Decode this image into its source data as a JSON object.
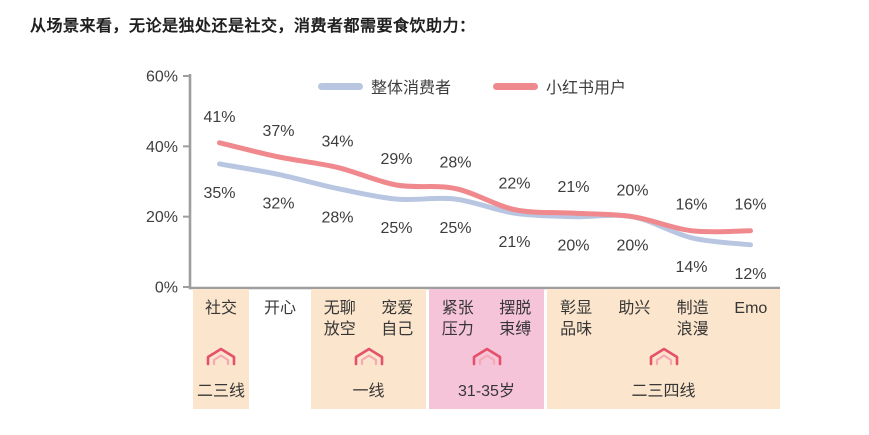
{
  "title": "从场景来看，无论是独处还是社交，消费者都需要食饮助力：",
  "legend": [
    {
      "label": "整体消费者",
      "color": "#b9c6e2"
    },
    {
      "label": "小红书用户",
      "color": "#f0898d"
    }
  ],
  "chart_data": {
    "type": "line",
    "title": "",
    "xlabel": "",
    "ylabel": "",
    "categories": [
      "社交",
      "开心",
      "无聊放空",
      "宠爱自己",
      "紧张压力",
      "摆脱束缚",
      "彰显品味",
      "助兴",
      "制造浪漫",
      "Emo"
    ],
    "series": [
      {
        "name": "整体消费者",
        "color": "#b9c6e2",
        "values": [
          35,
          32,
          28,
          25,
          25,
          21,
          20,
          20,
          14,
          12
        ],
        "label_position": "below"
      },
      {
        "name": "小红书用户",
        "color": "#f0898d",
        "values": [
          41,
          37,
          34,
          29,
          28,
          22,
          21,
          20,
          16,
          16
        ],
        "label_position": "above"
      }
    ],
    "ylim": [
      0,
      60
    ],
    "yticks": [
      {
        "value": 0,
        "label": "0%"
      },
      {
        "value": 20,
        "label": "20%"
      },
      {
        "value": 40,
        "label": "40%"
      },
      {
        "value": 60,
        "label": "60%"
      }
    ],
    "grid": false,
    "legend_position": "top-center"
  },
  "groups": [
    {
      "categories": [
        "社交"
      ],
      "label": "二三线",
      "bg": "#fbe5cc",
      "arrow": true
    },
    {
      "categories": [
        "开心"
      ],
      "label": "",
      "bg": "transparent",
      "arrow": false
    },
    {
      "categories": [
        "无聊\n放空",
        "宠爱\n自己"
      ],
      "label": "一线",
      "bg": "#fbe5cc",
      "arrow": true
    },
    {
      "categories": [
        "紧张\n压力",
        "摆脱\n束缚"
      ],
      "label": "31-35岁",
      "bg": "#f6c4d9",
      "arrow": true
    },
    {
      "categories": [
        "彰显\n品味",
        "助兴",
        "制造\n浪漫",
        "Emo"
      ],
      "label": "二三四线",
      "bg": "#fbe5cc",
      "arrow": true
    }
  ],
  "colors": {
    "axis": "#9e9e9e",
    "label_text": "#3d3d3d",
    "arrow": "#e5506a",
    "arrow_inner": "#f5a9b4"
  }
}
